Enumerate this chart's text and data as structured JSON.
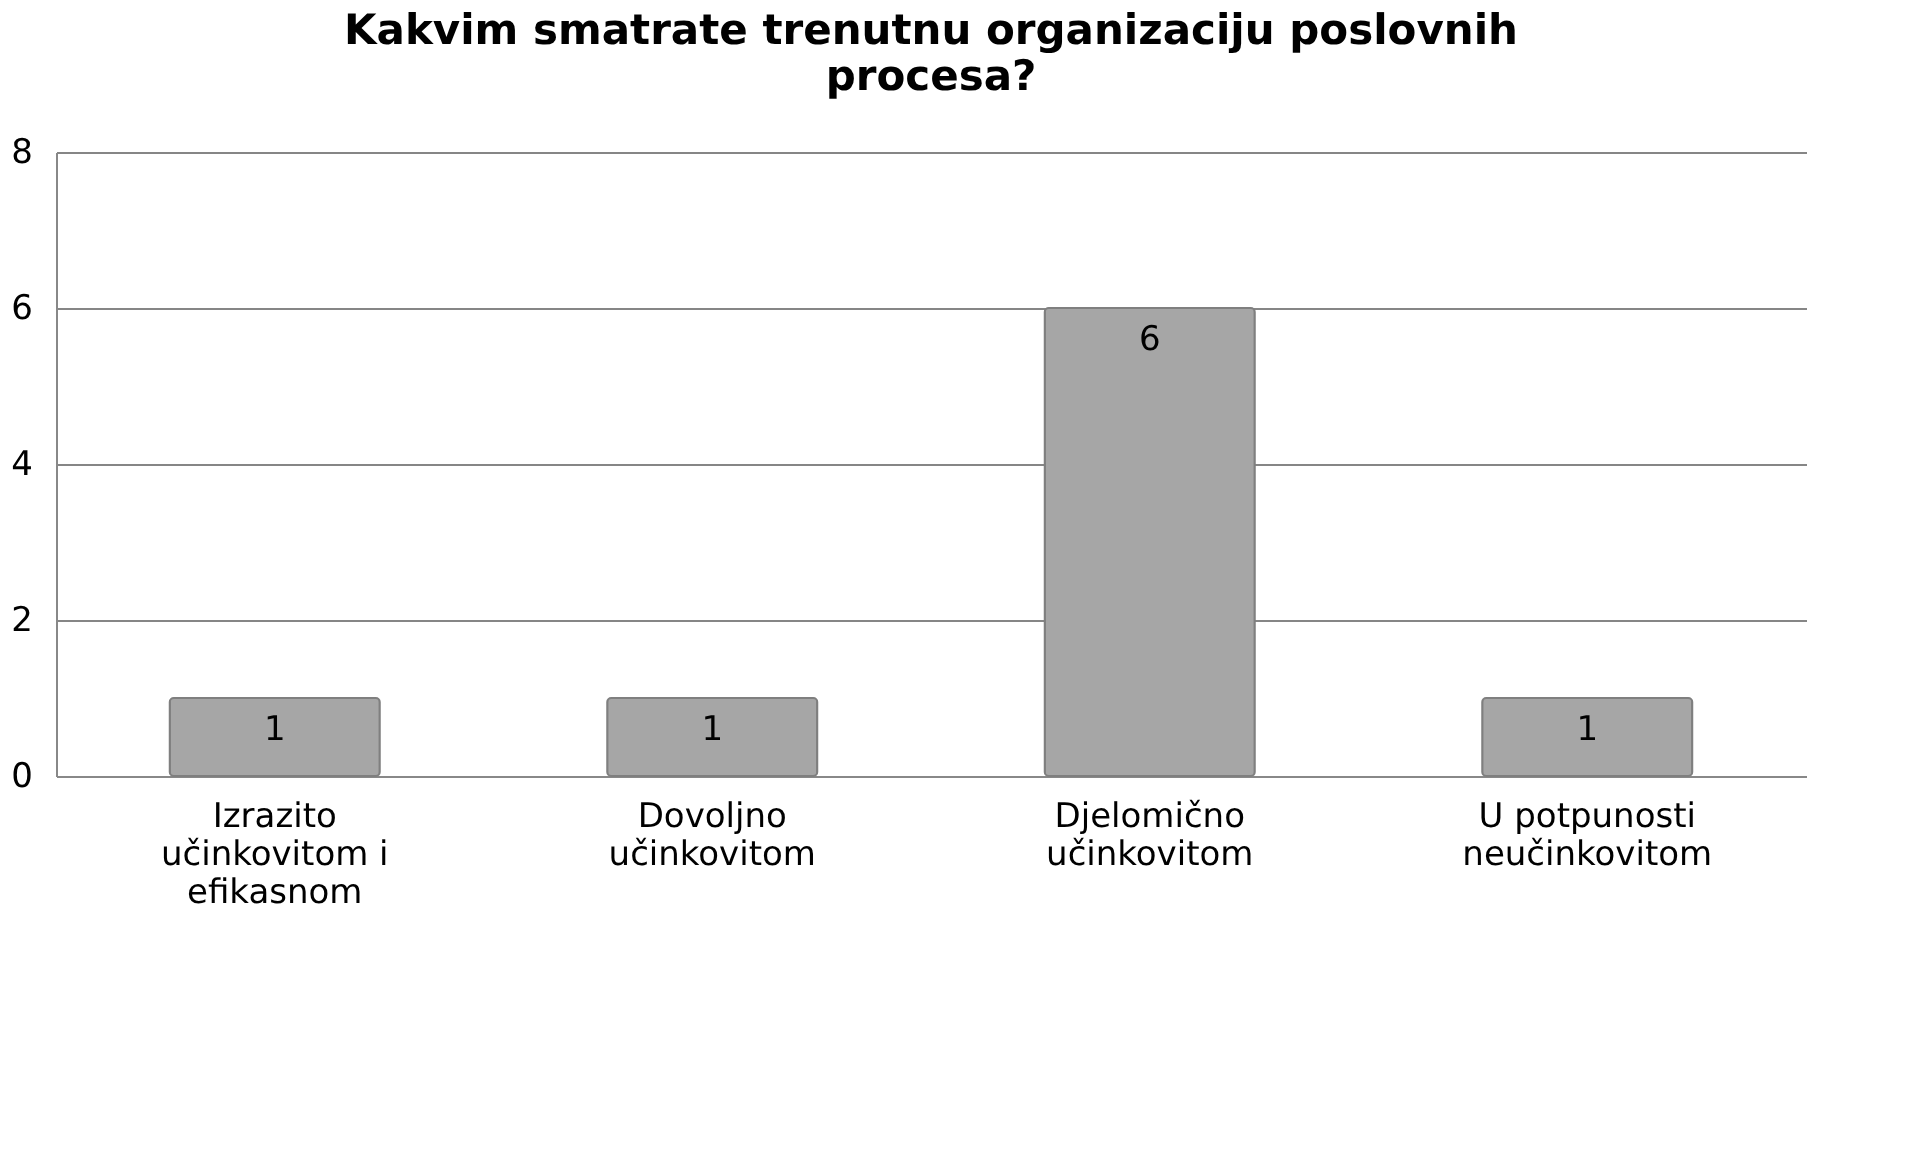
{
  "chart_data": {
    "type": "bar",
    "title": "Kakvim smatrate trenutnu organizaciju poslovnih procesa?",
    "categories": [
      "Izrazito učinkovitom i efikasnom",
      "Dovoljno učinkovitom",
      "Djelomično učinkovitom",
      "U potpunosti neučinkovitom"
    ],
    "values": [
      1,
      1,
      6,
      1
    ],
    "color": "#a6a6a6",
    "ylim": [
      0,
      8
    ],
    "yticks": [
      0,
      2,
      4,
      6,
      8
    ],
    "grid": "y",
    "data_labels": true
  }
}
